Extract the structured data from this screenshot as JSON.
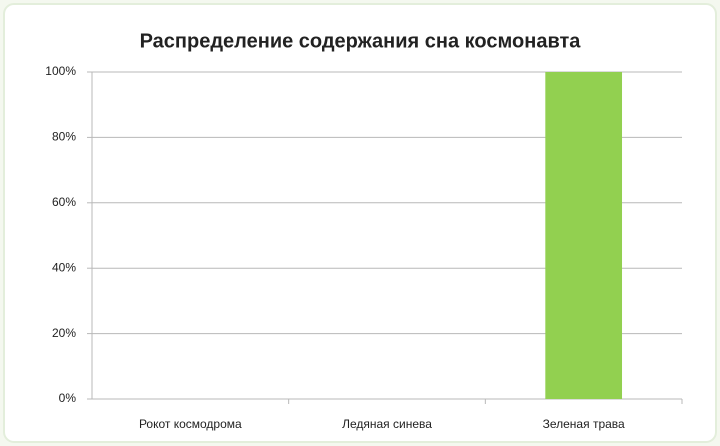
{
  "chart_data": {
    "type": "bar",
    "title": "Распределение содержания сна космонавта",
    "categories": [
      "Рокот космодрома",
      "Ледяная синева",
      "Зеленая трава"
    ],
    "values": [
      0,
      0,
      100
    ],
    "color": "#92d050",
    "ylim": [
      0,
      100
    ],
    "yticks": [
      {
        "value": 0,
        "label": "0%"
      },
      {
        "value": 20,
        "label": "20%"
      },
      {
        "value": 40,
        "label": "40%"
      },
      {
        "value": 60,
        "label": "60%"
      },
      {
        "value": 80,
        "label": "80%"
      },
      {
        "value": 100,
        "label": "100%"
      }
    ],
    "grid": true
  }
}
